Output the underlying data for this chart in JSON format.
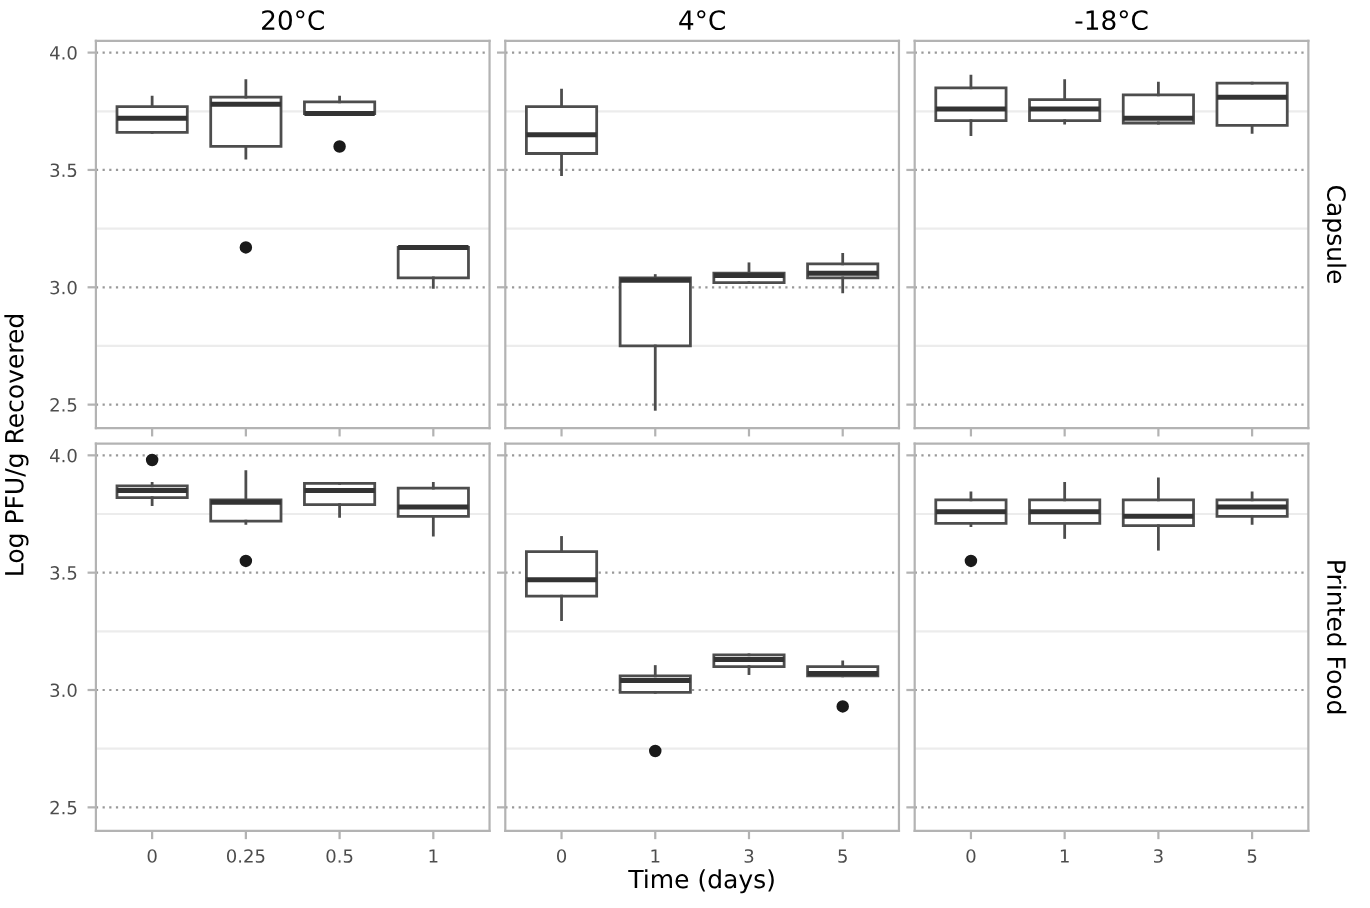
{
  "chart_data": [
    {
      "type": "box",
      "title": "20°C",
      "ylabel": "Log PFU/g Recovered",
      "categories": [
        "0",
        "0.25",
        "0.5",
        "1"
      ],
      "ylim": [
        2.4,
        4.05
      ],
      "yticks": [
        {
          "value": 2.5,
          "label": "2.5"
        },
        {
          "value": 3.0,
          "label": "3.0"
        },
        {
          "value": 3.5,
          "label": "3.5"
        },
        {
          "value": 4.0,
          "label": "4.0"
        }
      ],
      "grid": "y",
      "tick_labels": "y",
      "boxes": [
        {
          "low": 3.66,
          "q1": 3.66,
          "median": 3.72,
          "q3": 3.77,
          "high": 3.81
        },
        {
          "low": 3.55,
          "q1": 3.6,
          "median": 3.78,
          "q3": 3.81,
          "high": 3.88,
          "outliers": [
            3.17
          ]
        },
        {
          "low": 3.74,
          "q1": 3.74,
          "median": 3.74,
          "q3": 3.79,
          "high": 3.81,
          "outliers": [
            3.6
          ]
        },
        {
          "low": 3.0,
          "q1": 3.04,
          "median": 3.17,
          "q3": 3.17,
          "high": 3.17
        }
      ]
    },
    {
      "type": "box",
      "title": "4°C",
      "categories": [
        "0",
        "1",
        "3",
        "5"
      ],
      "ylim": [
        2.4,
        4.05
      ],
      "yticks": [
        2.5,
        3.0,
        3.5,
        4.0
      ],
      "grid": "y",
      "tick_labels": false,
      "boxes": [
        {
          "low": 3.48,
          "q1": 3.57,
          "median": 3.65,
          "q3": 3.77,
          "high": 3.84
        },
        {
          "low": 2.48,
          "q1": 2.75,
          "median": 3.03,
          "q3": 3.04,
          "high": 3.05
        },
        {
          "low": 3.02,
          "q1": 3.02,
          "median": 3.05,
          "q3": 3.06,
          "high": 3.1
        },
        {
          "low": 2.98,
          "q1": 3.04,
          "median": 3.06,
          "q3": 3.1,
          "high": 3.14
        }
      ]
    },
    {
      "type": "box",
      "title": "-18°C",
      "annotations": [
        "Capsule"
      ],
      "categories": [
        "0",
        "1",
        "3",
        "5"
      ],
      "ylim": [
        2.4,
        4.05
      ],
      "yticks": [
        2.5,
        3.0,
        3.5,
        4.0
      ],
      "grid": "y",
      "tick_labels": false,
      "boxes": [
        {
          "low": 3.65,
          "q1": 3.71,
          "median": 3.76,
          "q3": 3.85,
          "high": 3.9
        },
        {
          "low": 3.7,
          "q1": 3.71,
          "median": 3.76,
          "q3": 3.8,
          "high": 3.88
        },
        {
          "low": 3.7,
          "q1": 3.7,
          "median": 3.72,
          "q3": 3.82,
          "high": 3.87
        },
        {
          "low": 3.66,
          "q1": 3.69,
          "median": 3.81,
          "q3": 3.87,
          "high": 3.87
        }
      ]
    },
    {
      "type": "box",
      "categories": [
        "0",
        "0.25",
        "0.5",
        "1"
      ],
      "ylim": [
        2.4,
        4.05
      ],
      "yticks": [
        {
          "value": 2.5,
          "label": "2.5"
        },
        {
          "value": 3.0,
          "label": "3.0"
        },
        {
          "value": 3.5,
          "label": "3.5"
        },
        {
          "value": 4.0,
          "label": "4.0"
        }
      ],
      "grid": "y",
      "boxes": [
        {
          "low": 3.79,
          "q1": 3.82,
          "median": 3.85,
          "q3": 3.87,
          "high": 3.88,
          "outliers": [
            3.98
          ]
        },
        {
          "low": 3.71,
          "q1": 3.72,
          "median": 3.8,
          "q3": 3.81,
          "high": 3.93,
          "outliers": [
            3.55
          ]
        },
        {
          "low": 3.74,
          "q1": 3.79,
          "median": 3.85,
          "q3": 3.88,
          "high": 3.88
        },
        {
          "low": 3.66,
          "q1": 3.74,
          "median": 3.78,
          "q3": 3.86,
          "high": 3.88
        }
      ]
    },
    {
      "type": "box",
      "xlabel": "Time (days)",
      "categories": [
        "0",
        "1",
        "3",
        "5"
      ],
      "ylim": [
        2.4,
        4.05
      ],
      "yticks": [
        2.5,
        3.0,
        3.5,
        4.0
      ],
      "grid": "y",
      "tick_labels": "x",
      "boxes": [
        {
          "low": 3.3,
          "q1": 3.4,
          "median": 3.47,
          "q3": 3.59,
          "high": 3.65
        },
        {
          "low": 2.99,
          "q1": 2.99,
          "median": 3.04,
          "q3": 3.06,
          "high": 3.1,
          "outliers": [
            2.74
          ]
        },
        {
          "low": 3.07,
          "q1": 3.1,
          "median": 3.13,
          "q3": 3.15,
          "high": 3.15
        },
        {
          "low": 3.06,
          "q1": 3.06,
          "median": 3.07,
          "q3": 3.1,
          "high": 3.12,
          "outliers": [
            2.93
          ]
        }
      ]
    },
    {
      "type": "box",
      "annotations": [
        "Printed Food"
      ],
      "categories": [
        "0",
        "1",
        "3",
        "5"
      ],
      "ylim": [
        2.4,
        4.05
      ],
      "yticks": [
        2.5,
        3.0,
        3.5,
        4.0
      ],
      "grid": "y",
      "tick_labels": "x",
      "boxes": [
        {
          "low": 3.7,
          "q1": 3.71,
          "median": 3.76,
          "q3": 3.81,
          "high": 3.84,
          "outliers": [
            3.55
          ]
        },
        {
          "low": 3.65,
          "q1": 3.71,
          "median": 3.76,
          "q3": 3.81,
          "high": 3.88
        },
        {
          "low": 3.6,
          "q1": 3.7,
          "median": 3.74,
          "q3": 3.81,
          "high": 3.9
        },
        {
          "low": 3.71,
          "q1": 3.74,
          "median": 3.78,
          "q3": 3.81,
          "high": 3.84
        }
      ]
    }
  ]
}
